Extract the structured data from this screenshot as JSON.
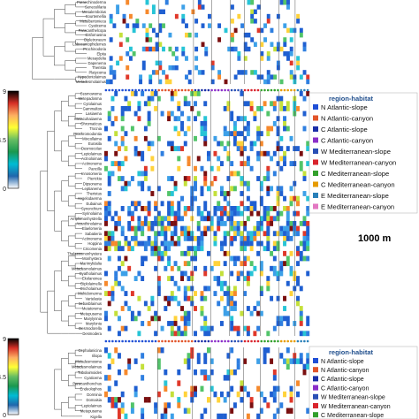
{
  "chart_data": {
    "type": "heatmap",
    "colorbar": {
      "ticks": [
        "9",
        "4.5",
        "0"
      ],
      "colors": [
        "#000000",
        "#d73027",
        "#fdae61",
        "#ffff33",
        "#66bd63",
        "#1a9850",
        "#00bcd4",
        "#2166ac",
        "#ffffff"
      ]
    },
    "legend": {
      "title": "region-habitat",
      "items": [
        {
          "label": "N Atlantic-slope",
          "color": "#1f4fd6"
        },
        {
          "label": "N Atlantic-canyon",
          "color": "#e2552b"
        },
        {
          "label": "C Atlantic-slope",
          "color": "#1c2fa8"
        },
        {
          "label": "C Atlantic-canyon",
          "color": "#8b2fc9"
        },
        {
          "label": "W Mediterranean-slope",
          "color": "#2a4fb5"
        },
        {
          "label": "W Mediterranean-canyon",
          "color": "#d9242d"
        },
        {
          "label": "C Mediterranean-slope",
          "color": "#33a02c"
        },
        {
          "label": "C Mediterranean-canyon",
          "color": "#e69b00"
        },
        {
          "label": "E Mediterranean-slope",
          "color": "#2980b9"
        },
        {
          "label": "E Mediterranean-canyon",
          "color": "#e377c2"
        }
      ]
    },
    "panels": [
      {
        "depth_label": "",
        "rows": [
          "Paraechinoderma",
          "Senecelilaria",
          "Mesalembolus",
          "Sourtemellia",
          "Metalbertonieca",
          "Cyaticema",
          "Paracanthelcopa",
          "Disfornasma",
          "Dipletroneum",
          "Lobocantophidemes",
          "Prochinodoria",
          "Elpita",
          "Mesaydelia",
          "Dapenema",
          "Theristia",
          "Platycoma",
          "Hypodontolaimus",
          "Metadesmolaimus"
        ],
        "n_cols": 62,
        "values_note": ""
      },
      {
        "depth_label": "1000 m",
        "rows": [
          "Cesmowoma",
          "Metepadosma",
          "Cytolaimus",
          "Gammaltos",
          "Lasiaema",
          "Metacuhaiiaema",
          "Ohromaticus",
          "Trocnia",
          "Prochromodontia",
          "Mixcollaima",
          "Eurasila",
          "Desmocolax",
          "Leptolaimus",
          "Actnoloimas",
          "Actinonema",
          "Pancilla",
          "Innosomeria",
          "Pierickia",
          "Dipsonema",
          "Leptianema",
          "Theristus",
          "Angelodaerma",
          "Eubainus",
          "Synonchium",
          "Syrinolaima",
          "Amphimonhystrella",
          "Acanthinolaima",
          "Elaelomeria",
          "Sabatieria",
          "Actinonema",
          "Hoppina",
          "Cricomenia",
          "Thalassomonhystera",
          "Monhystera",
          "Marimylidalia",
          "Metadesmolaimus",
          "Cyatholaimus",
          "Ekolanonea",
          "Diplolaimella",
          "Oncholaimus",
          "Mohidomerma",
          "Vartelasta",
          "Sebasblaimus",
          "Meiatorema",
          "Metepusema",
          "Marylynnia",
          "Marylonia",
          "Desmodorella",
          "Desmodera"
        ],
        "n_cols": 62
      },
      {
        "depth_label": "",
        "rows": [
          "Cephalanicina",
          "Iiliopa",
          "Metadesmosma",
          "Metadesmolaimus",
          "Tubolaimoides",
          "Cyaticema",
          "Paracanthonchus",
          "Endeolophos",
          "Dorminia",
          "Domaisia",
          "Leptolaimus",
          "Metepusema",
          "Kigella"
        ],
        "n_cols": 62
      }
    ]
  }
}
